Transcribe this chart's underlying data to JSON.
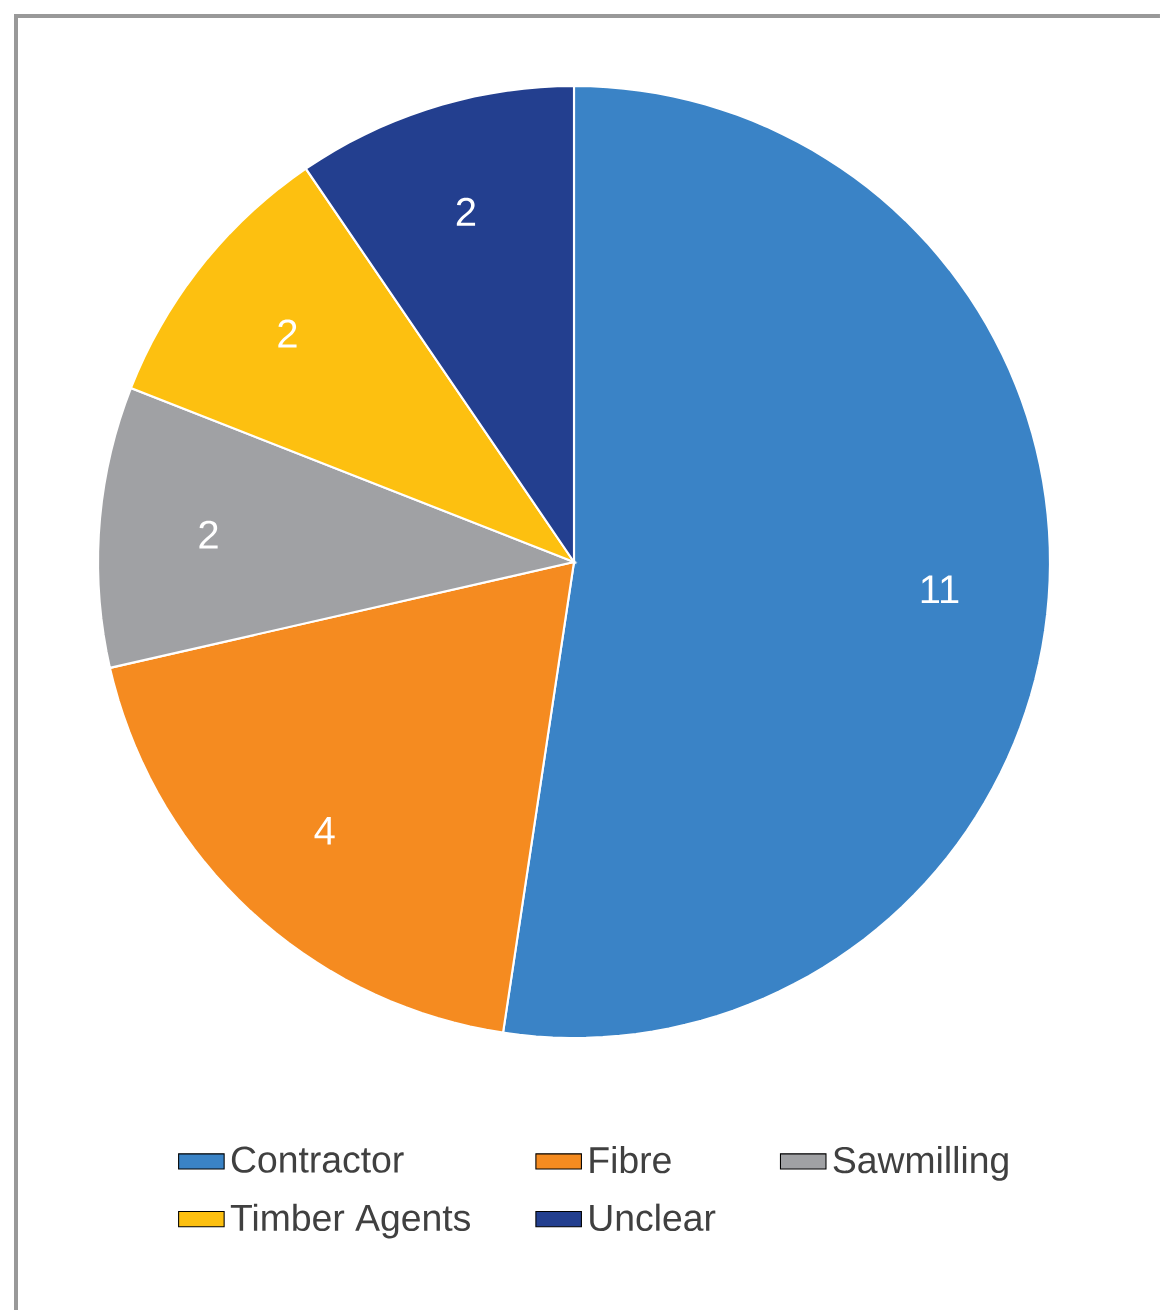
{
  "chart_data": {
    "type": "pie",
    "categories": [
      "Contractor",
      "Fibre",
      "Sawmilling",
      "Timber Agents",
      "Unclear"
    ],
    "values": [
      11,
      4,
      2,
      2,
      2
    ],
    "colors": [
      "#3a83c6",
      "#f58b20",
      "#a0a1a4",
      "#fdc010",
      "#233f8f"
    ],
    "data_labels": true,
    "legend": "bottom"
  }
}
